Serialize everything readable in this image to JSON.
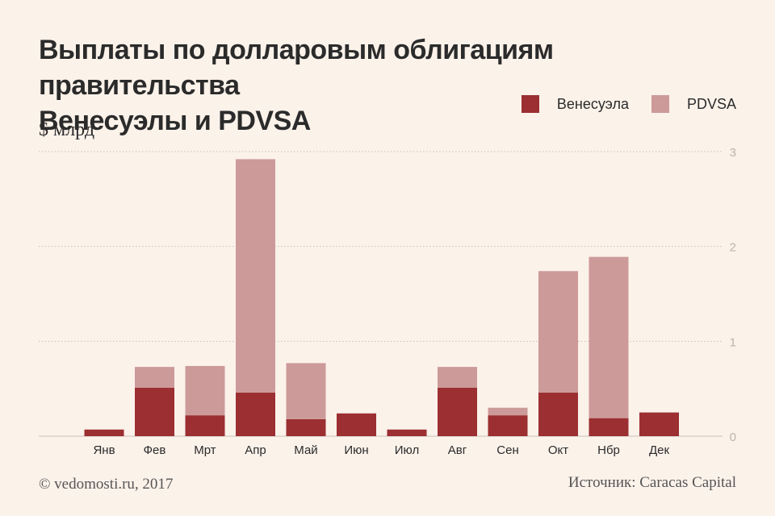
{
  "title_line1": "Выплаты по долларовым облигациям правительства",
  "title_line2": "Венесуэлы и PDVSA",
  "units": "$ млрд",
  "footer_left": "© vedomosti.ru, 2017",
  "footer_right": "Источник: Caracas Capital",
  "colors": {
    "venezuela": "#9b2f32",
    "pdvsa": "#cc9a99",
    "grid": "#c9c0ba",
    "tick": "#bdb3ac",
    "background": "#fbf2ea"
  },
  "chart_data": {
    "type": "bar",
    "stacked": true,
    "categories": [
      "Янв",
      "Фев",
      "Мрт",
      "Апр",
      "Май",
      "Июн",
      "Июл",
      "Авг",
      "Сен",
      "Окт",
      "Нбр",
      "Дек"
    ],
    "series": [
      {
        "name": "Венесуэла",
        "values": [
          0.07,
          0.51,
          0.22,
          0.46,
          0.18,
          0.24,
          0.07,
          0.51,
          0.22,
          0.46,
          0.19,
          0.25
        ]
      },
      {
        "name": "PDVSA",
        "values": [
          0,
          0.22,
          0.52,
          2.46,
          0.59,
          0,
          0,
          0.22,
          0.08,
          1.28,
          1.7,
          0
        ]
      }
    ],
    "yticks": [
      "0",
      "1",
      "2",
      "3"
    ],
    "ylim": [
      0,
      3
    ],
    "grid": true,
    "legend_position": "top-right"
  }
}
